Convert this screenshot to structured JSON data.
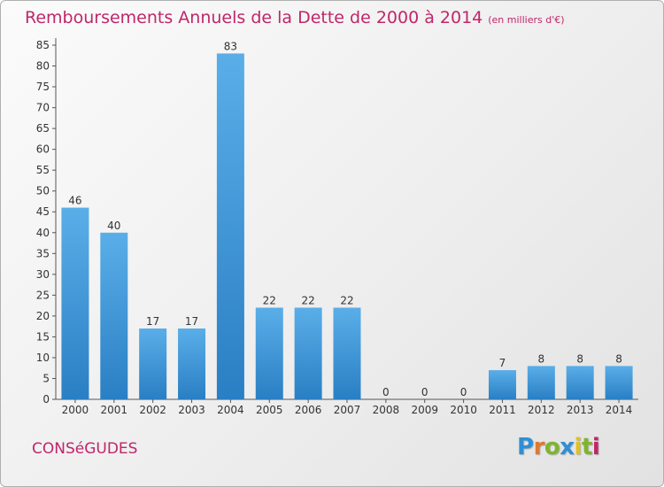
{
  "header": {
    "title": "Remboursements Annuels de la Dette de 2000 à 2014",
    "unit": "(en milliers d'€)"
  },
  "footer": {
    "commune": "CONSéGUDES",
    "logo_letters": [
      "P",
      "r",
      "o",
      "x",
      "i",
      "t",
      "i"
    ]
  },
  "colors": {
    "bar": "#3f96dc",
    "title": "#c0266a"
  },
  "chart_data": {
    "type": "bar",
    "title": "Remboursements Annuels de la Dette de 2000 à 2014",
    "xlabel": "",
    "ylabel": "",
    "categories": [
      "2000",
      "2001",
      "2002",
      "2003",
      "2004",
      "2005",
      "2006",
      "2007",
      "2008",
      "2009",
      "2010",
      "2011",
      "2012",
      "2013",
      "2014"
    ],
    "values": [
      46,
      40,
      17,
      17,
      83,
      22,
      22,
      22,
      0,
      0,
      0,
      7,
      8,
      8,
      8
    ],
    "ylim": [
      0,
      85
    ],
    "yticks": [
      0,
      5,
      10,
      15,
      20,
      25,
      30,
      35,
      40,
      45,
      50,
      55,
      60,
      65,
      70,
      75,
      80,
      85
    ],
    "grid": false,
    "legend": "none"
  }
}
